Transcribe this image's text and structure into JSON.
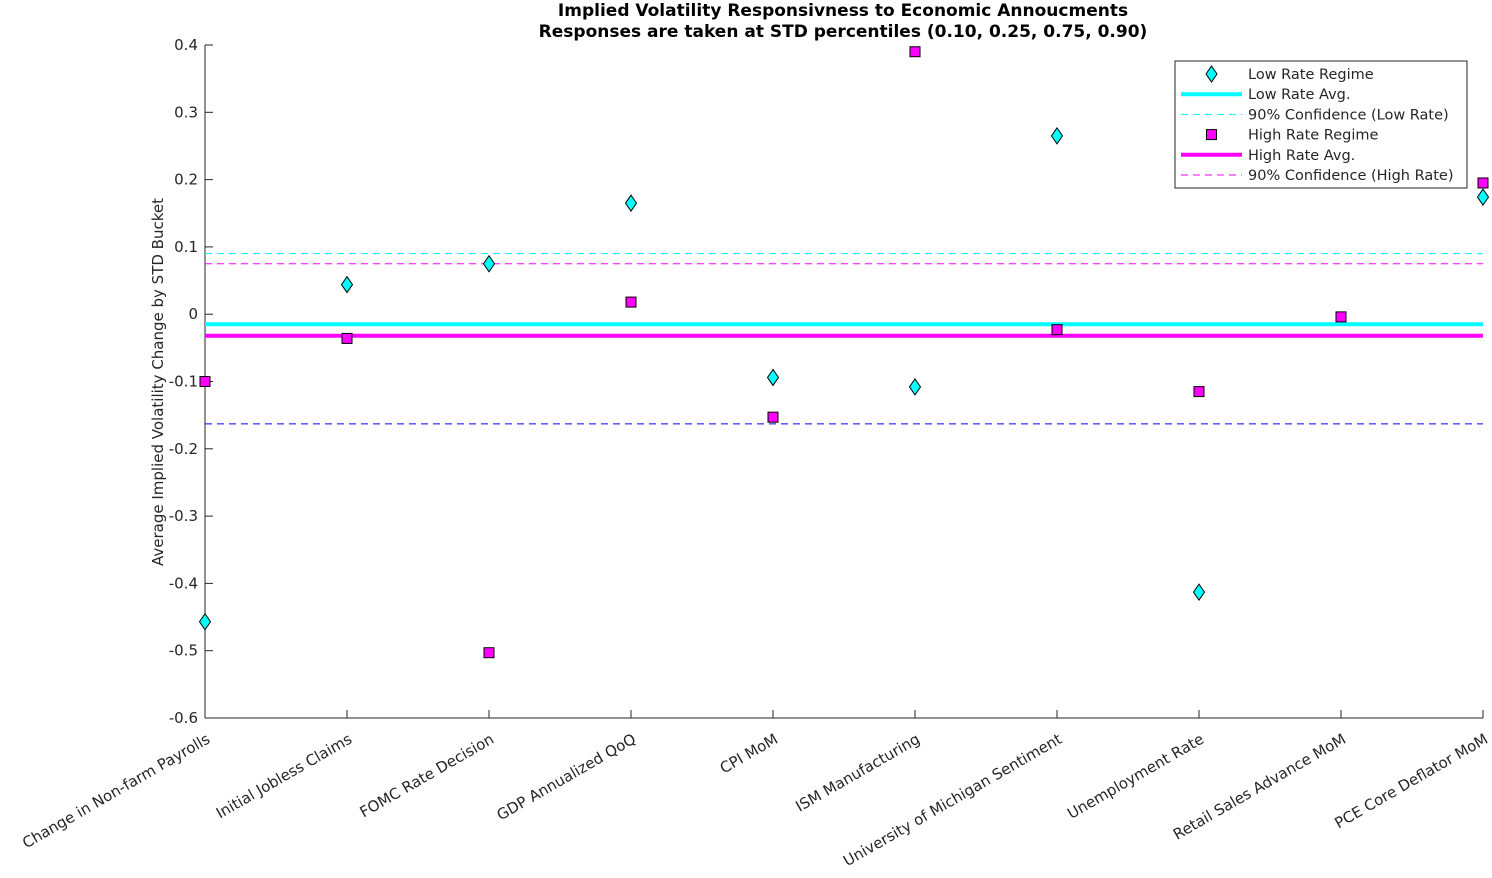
{
  "chart_data": {
    "type": "scatter",
    "title": "Implied Volatility Responsivness to Economic Annoucments",
    "subtitle": "Responses are taken at STD percentiles (0.10, 0.25, 0.75, 0.90)",
    "xlabel": "",
    "ylabel": "Average Implied Volatility Change by STD Bucket",
    "ylim": [
      -0.6,
      0.4
    ],
    "yticks": [
      0.4,
      0.3,
      0.2,
      0.1,
      0,
      -0.1,
      -0.2,
      -0.3,
      -0.4,
      -0.5,
      -0.6
    ],
    "ytick_labels": [
      "0.4",
      "0.3",
      "0.2",
      "0.1",
      "0",
      "-0.1",
      "-0.2",
      "-0.3",
      "-0.4",
      "-0.5",
      "-0.6"
    ],
    "categories": [
      "Change in Non-farm Payrolls",
      "Initial Jobless Claims",
      "FOMC Rate Decision",
      "GDP Annualized QoQ",
      "CPI MoM",
      "ISM Manufacturing",
      "University of Michigan Sentiment",
      "Unemployment Rate",
      "Retail Sales Advance MoM",
      "PCE Core Deflator MoM"
    ],
    "grid": false,
    "legend_position": "top-right",
    "series": [
      {
        "name": "Low Rate Regime",
        "marker": "diamond",
        "color": "#00FFFF",
        "values": [
          -0.457,
          0.044,
          0.075,
          0.165,
          -0.094,
          -0.108,
          0.265,
          -0.413,
          null,
          0.174
        ]
      },
      {
        "name": "High Rate Regime",
        "marker": "square",
        "color": "#FF00FF",
        "values": [
          -0.1,
          -0.036,
          -0.503,
          0.018,
          -0.153,
          0.39,
          -0.023,
          -0.115,
          -0.004,
          0.195
        ]
      }
    ],
    "reference_lines": [
      {
        "name": "Low Rate Avg.",
        "value": -0.015,
        "color": "#00FFFF",
        "style": "solid"
      },
      {
        "name": "90% Confidence (Low Rate)",
        "value": 0.09,
        "color": "#00FFFF",
        "style": "dashed"
      },
      {
        "name": "High Rate Avg.",
        "value": -0.032,
        "color": "#FF00FF",
        "style": "solid"
      },
      {
        "name": "90% Confidence (High Rate)",
        "value": 0.075,
        "color": "#FF00FF",
        "style": "dashed"
      },
      {
        "name": "",
        "value": -0.163,
        "color": "#0000FF",
        "style": "dashed"
      }
    ],
    "legend": [
      {
        "label": "Low Rate Regime",
        "kind": "marker-diamond",
        "color": "#00FFFF"
      },
      {
        "label": "Low Rate Avg.",
        "kind": "line-solid",
        "color": "#00FFFF"
      },
      {
        "label": "90% Confidence (Low Rate)",
        "kind": "line-dashed",
        "color": "#00FFFF"
      },
      {
        "label": "High Rate Regime",
        "kind": "marker-square",
        "color": "#FF00FF"
      },
      {
        "label": "High Rate Avg.",
        "kind": "line-solid",
        "color": "#FF00FF"
      },
      {
        "label": "90% Confidence (High Rate)",
        "kind": "line-dashed",
        "color": "#FF00FF"
      }
    ]
  }
}
